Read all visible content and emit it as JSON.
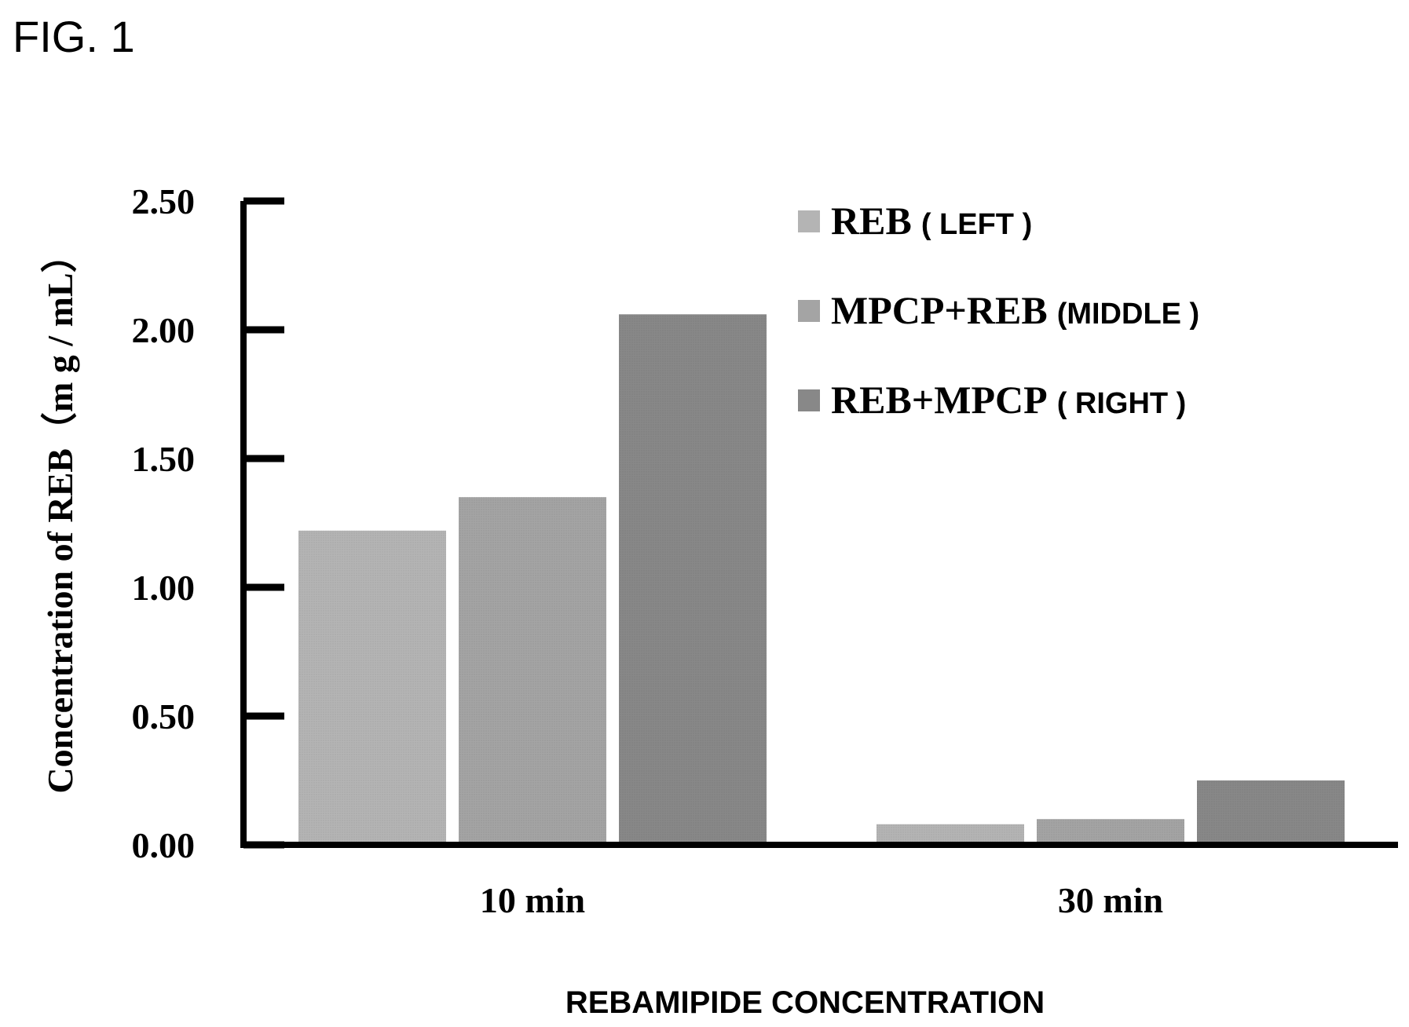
{
  "figure_label": "FIG. 1",
  "chart_data": {
    "type": "bar",
    "categories": [
      "10 min",
      "30 min"
    ],
    "series": [
      {
        "name": "REB",
        "position": "( LEFT )",
        "color": "#b4b4b4",
        "values": [
          1.22,
          0.08
        ]
      },
      {
        "name": "MPCP+REB",
        "position": "(MIDDLE )",
        "color": "#a4a4a4",
        "values": [
          1.35,
          0.1
        ]
      },
      {
        "name": "REB+MPCP",
        "position": "( RIGHT )",
        "color": "#888888",
        "values": [
          2.06,
          0.25
        ]
      }
    ],
    "ylabel": "Concentration of REB（m g / mL）",
    "xlabel": "REBAMIPIDE CONCENTRATION",
    "ylim": [
      0,
      2.5
    ],
    "yticks": [
      "0.00",
      "0.50",
      "1.00",
      "1.50",
      "2.00",
      "2.50"
    ],
    "grid": false,
    "legend_placement": "top-right"
  }
}
